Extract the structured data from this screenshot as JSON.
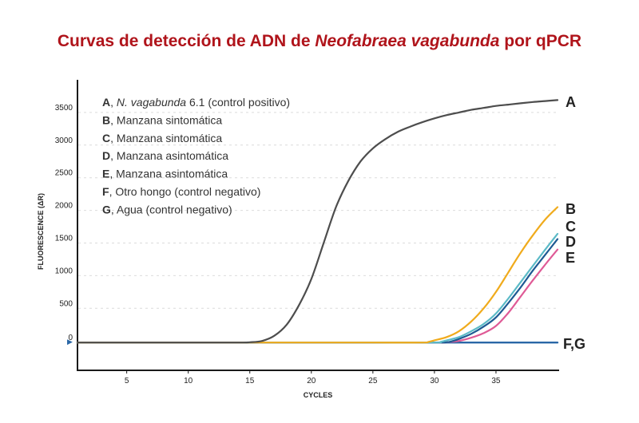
{
  "title": {
    "prefix": "Curvas de detección de ADN de ",
    "species": "Neofabraea vagabunda",
    "suffix": " por qPCR"
  },
  "chart_data": {
    "type": "line",
    "xlabel": "CYCLES",
    "ylabel": "FLUORESCENCE (ΔR)",
    "xlim": [
      1,
      40
    ],
    "ylim": [
      -450,
      4000
    ],
    "xticks": [
      5,
      10,
      15,
      20,
      25,
      30,
      35
    ],
    "yticks": [
      0,
      500,
      1000,
      1500,
      2000,
      2500,
      3000,
      3500
    ],
    "baseline_marker": "▶",
    "legend": [
      {
        "key": "A",
        "text": ", ",
        "italic": "N. vagabunda",
        "rest": " 6.1 (control positivo)"
      },
      {
        "key": "B",
        "text": ", Manzana sintomática"
      },
      {
        "key": "C",
        "text": ", Manzana sintomática"
      },
      {
        "key": "D",
        "text": ", Manzana asintomática"
      },
      {
        "key": "E",
        "text": ", Manzana asintomática"
      },
      {
        "key": "F",
        "text": ", Otro hongo (control negativo)"
      },
      {
        "key": "G",
        "text": ", Agua (control negativo)"
      }
    ],
    "series": [
      {
        "id": "A",
        "label": "A",
        "color": "#4d4d4d",
        "x": [
          1,
          5,
          10,
          14,
          15,
          16,
          17,
          18,
          19,
          20,
          21,
          22,
          23,
          24,
          25,
          26,
          27,
          28,
          29,
          30,
          31,
          32,
          33,
          34,
          35,
          36,
          37,
          38,
          39,
          40
        ],
        "y": [
          -25,
          -25,
          -25,
          -25,
          -20,
          0,
          80,
          250,
          550,
          950,
          1500,
          2050,
          2450,
          2750,
          2950,
          3090,
          3200,
          3280,
          3350,
          3410,
          3460,
          3500,
          3540,
          3570,
          3600,
          3620,
          3640,
          3660,
          3675,
          3690
        ]
      },
      {
        "id": "B",
        "label": "B",
        "color": "#f0ab1c",
        "x": [
          1,
          5,
          10,
          15,
          20,
          25,
          29,
          29.5,
          30,
          31,
          32,
          33,
          34,
          35,
          36,
          37,
          38,
          39,
          40
        ],
        "y": [
          -25,
          -25,
          -25,
          -25,
          -25,
          -25,
          -25,
          -15,
          10,
          60,
          150,
          300,
          500,
          750,
          1050,
          1350,
          1620,
          1860,
          2050
        ]
      },
      {
        "id": "C",
        "label": "C",
        "color": "#5bbac7",
        "x": [
          1,
          5,
          10,
          15,
          20,
          25,
          30,
          30.5,
          31,
          32,
          33,
          34,
          35,
          36,
          37,
          38,
          39,
          40
        ],
        "y": [
          -25,
          -25,
          -25,
          -25,
          -25,
          -25,
          -25,
          -15,
          10,
          60,
          150,
          260,
          420,
          650,
          900,
          1150,
          1400,
          1640
        ]
      },
      {
        "id": "D",
        "label": "D",
        "color": "#1d5a93",
        "x": [
          1,
          5,
          10,
          15,
          20,
          25,
          30,
          31,
          31.5,
          32,
          33,
          34,
          35,
          36,
          37,
          38,
          39,
          40
        ],
        "y": [
          -25,
          -25,
          -25,
          -25,
          -25,
          -25,
          -25,
          -20,
          0,
          30,
          110,
          220,
          360,
          580,
          820,
          1080,
          1320,
          1560
        ]
      },
      {
        "id": "E",
        "label": "E",
        "color": "#df5a96",
        "x": [
          1,
          5,
          10,
          15,
          20,
          25,
          30,
          31,
          32,
          33,
          34,
          35,
          36,
          37,
          38,
          39,
          40
        ],
        "y": [
          -25,
          -25,
          -25,
          -25,
          -25,
          -25,
          -25,
          -20,
          0,
          50,
          120,
          230,
          430,
          680,
          930,
          1170,
          1400
        ]
      },
      {
        "id": "FG",
        "label": "F,G",
        "color": "#2a67a6",
        "x": [
          1,
          40
        ],
        "y": [
          -25,
          -25
        ]
      }
    ]
  }
}
